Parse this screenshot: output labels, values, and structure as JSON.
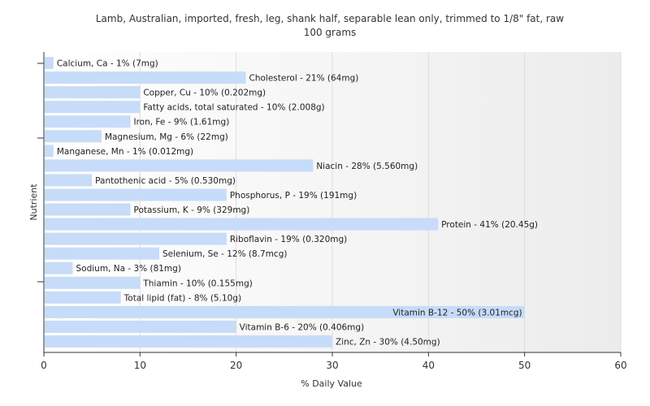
{
  "chart_data": {
    "type": "bar",
    "orientation": "horizontal",
    "title": "Lamb, Australian, imported, fresh, leg, shank half, separable lean only, trimmed to 1/8\" fat, raw",
    "subtitle": "100 grams",
    "xlabel": "% Daily Value",
    "ylabel": "Nutrient",
    "xlim": [
      0,
      60
    ],
    "xticks": [
      0,
      10,
      20,
      30,
      40,
      50,
      60
    ],
    "grid": true,
    "legend": "none",
    "bar_color": "#c6dcf8",
    "categories": [
      "Calcium, Ca",
      "Cholesterol",
      "Copper, Cu",
      "Fatty acids, total saturated",
      "Iron, Fe",
      "Magnesium, Mg",
      "Manganese, Mn",
      "Niacin",
      "Pantothenic acid",
      "Phosphorus, P",
      "Potassium, K",
      "Protein",
      "Riboflavin",
      "Selenium, Se",
      "Sodium, Na",
      "Thiamin",
      "Total lipid (fat)",
      "Vitamin B-12",
      "Vitamin B-6",
      "Zinc, Zn"
    ],
    "values": [
      1,
      21,
      10,
      10,
      9,
      6,
      1,
      28,
      5,
      19,
      9,
      41,
      19,
      12,
      3,
      10,
      8,
      50,
      20,
      30
    ],
    "labels": [
      "Calcium, Ca - 1% (7mg)",
      "Cholesterol - 21% (64mg)",
      "Copper, Cu - 10% (0.202mg)",
      "Fatty acids, total saturated - 10% (2.008g)",
      "Iron, Fe - 9% (1.61mg)",
      "Magnesium, Mg - 6% (22mg)",
      "Manganese, Mn - 1% (0.012mg)",
      "Niacin - 28% (5.560mg)",
      "Pantothenic acid - 5% (0.530mg)",
      "Phosphorus, P - 19% (191mg)",
      "Potassium, K - 9% (329mg)",
      "Protein - 41% (20.45g)",
      "Riboflavin - 19% (0.320mg)",
      "Selenium, Se - 12% (8.7mcg)",
      "Sodium, Na - 3% (81mg)",
      "Thiamin - 10% (0.155mg)",
      "Total lipid (fat) - 8% (5.10g)",
      "Vitamin B-12 - 50% (3.01mcg)",
      "Vitamin B-6 - 20% (0.406mg)",
      "Zinc, Zn - 30% (4.50mg)"
    ]
  }
}
